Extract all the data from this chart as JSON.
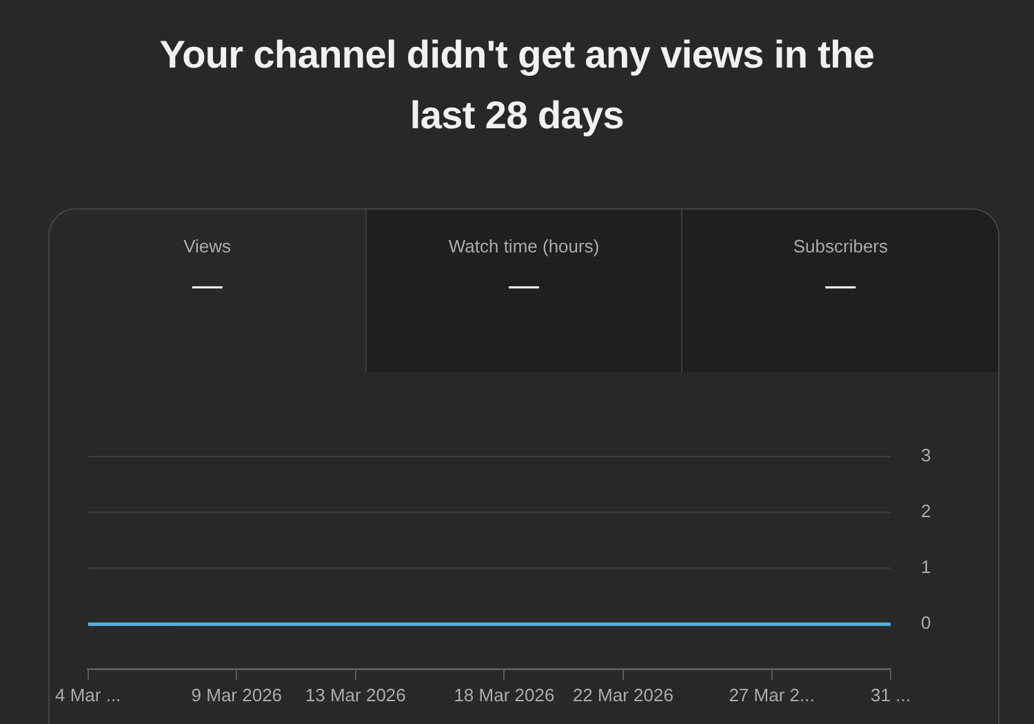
{
  "chart_data": {
    "type": "line",
    "title": "Your channel didn't get any views in the last 28 days",
    "annotations": [
      "Views",
      "—",
      "Watch time (hours)",
      "—",
      "Subscribers",
      "—"
    ],
    "x": [
      "2026-03-04",
      "2026-03-05",
      "2026-03-06",
      "2026-03-07",
      "2026-03-08",
      "2026-03-09",
      "2026-03-10",
      "2026-03-11",
      "2026-03-12",
      "2026-03-13",
      "2026-03-14",
      "2026-03-15",
      "2026-03-16",
      "2026-03-17",
      "2026-03-18",
      "2026-03-19",
      "2026-03-20",
      "2026-03-21",
      "2026-03-22",
      "2026-03-23",
      "2026-03-24",
      "2026-03-25",
      "2026-03-26",
      "2026-03-27",
      "2026-03-28",
      "2026-03-29",
      "2026-03-30",
      "2026-03-31"
    ],
    "series": [
      {
        "color": "#4fb2dc",
        "values": [
          0,
          0,
          0,
          0,
          0,
          0,
          0,
          0,
          0,
          0,
          0,
          0,
          0,
          0,
          0,
          0,
          0,
          0,
          0,
          0,
          0,
          0,
          0,
          0,
          0,
          0,
          0,
          0
        ]
      }
    ],
    "xlim": [
      "2026-03-04",
      "2026-03-31"
    ],
    "xticks": [
      {
        "value": "2026-03-04",
        "label": "4 Mar ..."
      },
      {
        "value": "2026-03-09",
        "label": "9 Mar 2026"
      },
      {
        "value": "2026-03-13",
        "label": "13 Mar 2026"
      },
      {
        "value": "2026-03-18",
        "label": "18 Mar 2026"
      },
      {
        "value": "2026-03-22",
        "label": "22 Mar 2026"
      },
      {
        "value": "2026-03-27",
        "label": "27 Mar 2..."
      },
      {
        "value": "2026-03-31",
        "label": "31 ..."
      }
    ],
    "ylim": [
      -0.8,
      3
    ],
    "yticks": [
      0,
      1,
      2,
      3
    ],
    "grid": "y",
    "marker": "none",
    "line_style": "solid"
  }
}
